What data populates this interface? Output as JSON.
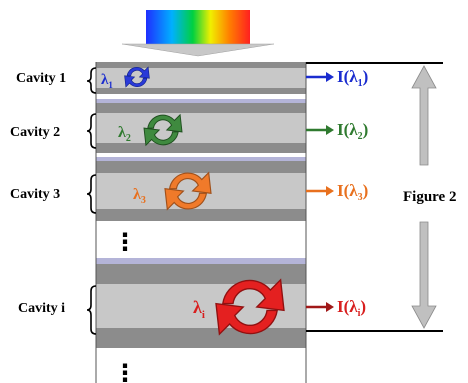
{
  "colors": {
    "cavity_band": "#c8c8c8",
    "mirror_dark": "#8c8c8c",
    "mirror_light": "#b4b4d8",
    "rainbow": [
      "#1f2fff",
      "#00b0ff",
      "#00d040",
      "#f0f000",
      "#ff8000",
      "#ff2020"
    ],
    "arrow_gray": "#c0c0c0"
  },
  "cavities": [
    {
      "label": "Cavity 1",
      "lambda": "λ",
      "sub": "1",
      "output": "I(λ",
      "output_sub": "1",
      "output_close": ")",
      "color": "#1a2ccf",
      "icon": "circular-arrows-icon"
    },
    {
      "label": "Cavity 2",
      "lambda": "λ",
      "sub": "2",
      "output": "I(λ",
      "output_sub": "2",
      "output_close": ")",
      "color": "#2f7a2f",
      "icon": "circular-arrows-icon"
    },
    {
      "label": "Cavity 3",
      "lambda": "λ",
      "sub": "3",
      "output": "I(λ",
      "output_sub": "3",
      "output_close": ")",
      "color": "#e8701e",
      "icon": "circular-arrows-icon"
    },
    {
      "label": "Cavity i",
      "lambda": "λ",
      "sub": "i",
      "output": "I(λ",
      "output_sub": "i",
      "output_close": ")",
      "color": "#d81e1e",
      "icon": "circular-arrows-icon"
    }
  ],
  "figure_label": "Figure 2",
  "ellipsis": "⋮"
}
